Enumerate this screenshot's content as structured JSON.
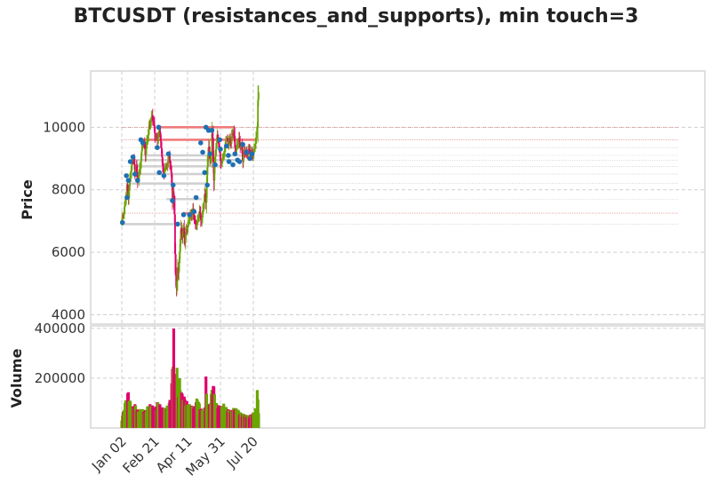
{
  "chart_data": {
    "type": "candlestick",
    "title": "BTCUSDT (resistances_and_supports), min touch=3",
    "price_panel": {
      "ylabel": "Price",
      "yticks": [
        4000,
        6000,
        8000,
        10000
      ],
      "ylim": [
        3700,
        11800
      ]
    },
    "volume_panel": {
      "ylabel": "Volume",
      "yticks": [
        "200000",
        "400000"
      ],
      "ylim": [
        0,
        410000
      ]
    },
    "x_ticks": [
      {
        "label": "Jan 02",
        "day": 0
      },
      {
        "label": "Feb 21",
        "day": 50
      },
      {
        "label": "Apr 11",
        "day": 100
      },
      {
        "label": "May 31",
        "day": 150
      },
      {
        "label": "Jul 20",
        "day": 200
      }
    ],
    "day_count": 209,
    "close_anchors": [
      [
        0,
        7000
      ],
      [
        3,
        7300
      ],
      [
        6,
        7750
      ],
      [
        8,
        8100
      ],
      [
        10,
        7800
      ],
      [
        12,
        8250
      ],
      [
        14,
        8600
      ],
      [
        16,
        8900
      ],
      [
        18,
        9050
      ],
      [
        20,
        8500
      ],
      [
        22,
        8750
      ],
      [
        24,
        8300
      ],
      [
        26,
        8450
      ],
      [
        28,
        8700
      ],
      [
        30,
        9200
      ],
      [
        32,
        9550
      ],
      [
        34,
        9400
      ],
      [
        36,
        9150
      ],
      [
        38,
        9500
      ],
      [
        40,
        9800
      ],
      [
        42,
        10000
      ],
      [
        44,
        10200
      ],
      [
        46,
        10400
      ],
      [
        48,
        10150
      ],
      [
        50,
        9800
      ],
      [
        52,
        9700
      ],
      [
        54,
        9600
      ],
      [
        56,
        9750
      ],
      [
        58,
        9900
      ],
      [
        60,
        9300
      ],
      [
        62,
        8800
      ],
      [
        64,
        8450
      ],
      [
        66,
        8800
      ],
      [
        68,
        8700
      ],
      [
        70,
        8900
      ],
      [
        72,
        9100
      ],
      [
        74,
        8800
      ],
      [
        76,
        8200
      ],
      [
        77,
        7700
      ],
      [
        78,
        7900
      ],
      [
        80,
        7300
      ],
      [
        81,
        6000
      ],
      [
        82,
        5200
      ],
      [
        83,
        4800
      ],
      [
        84,
        5100
      ],
      [
        85,
        5500
      ],
      [
        86,
        5300
      ],
      [
        88,
        6100
      ],
      [
        90,
        6700
      ],
      [
        92,
        6500
      ],
      [
        94,
        6800
      ],
      [
        96,
        6300
      ],
      [
        98,
        6700
      ],
      [
        100,
        6800
      ],
      [
        102,
        7050
      ],
      [
        104,
        7100
      ],
      [
        106,
        7200
      ],
      [
        108,
        7350
      ],
      [
        110,
        7100
      ],
      [
        112,
        6800
      ],
      [
        114,
        6950
      ],
      [
        116,
        7050
      ],
      [
        118,
        7300
      ],
      [
        120,
        7000
      ],
      [
        122,
        7150
      ],
      [
        124,
        7450
      ],
      [
        126,
        7800
      ],
      [
        128,
        7650
      ],
      [
        130,
        8700
      ],
      [
        132,
        9400
      ],
      [
        134,
        8900
      ],
      [
        136,
        9200
      ],
      [
        137,
        9800
      ],
      [
        138,
        9600
      ],
      [
        139,
        8900
      ],
      [
        140,
        8300
      ],
      [
        141,
        8700
      ],
      [
        143,
        9400
      ],
      [
        145,
        9700
      ],
      [
        147,
        9500
      ],
      [
        150,
        9000
      ],
      [
        152,
        8800
      ],
      [
        154,
        9100
      ],
      [
        156,
        9200
      ],
      [
        158,
        9650
      ],
      [
        160,
        9550
      ],
      [
        162,
        9500
      ],
      [
        164,
        9650
      ],
      [
        166,
        9500
      ],
      [
        168,
        9750
      ],
      [
        170,
        9900
      ],
      [
        171,
        9700
      ],
      [
        172,
        9400
      ],
      [
        174,
        9200
      ],
      [
        176,
        9500
      ],
      [
        178,
        9650
      ],
      [
        180,
        9400
      ],
      [
        182,
        9300
      ],
      [
        184,
        9000
      ],
      [
        186,
        9200
      ],
      [
        188,
        9150
      ],
      [
        190,
        9100
      ],
      [
        192,
        9300
      ],
      [
        194,
        9250
      ],
      [
        196,
        9100
      ],
      [
        198,
        9200
      ],
      [
        200,
        9150
      ],
      [
        202,
        9350
      ],
      [
        204,
        9600
      ],
      [
        206,
        10100
      ],
      [
        207,
        10900
      ],
      [
        208,
        11050
      ]
    ],
    "volume_anchors": [
      [
        0,
        35000
      ],
      [
        5,
        90000
      ],
      [
        10,
        130000
      ],
      [
        15,
        70000
      ],
      [
        20,
        85000
      ],
      [
        25,
        60000
      ],
      [
        30,
        70000
      ],
      [
        35,
        60000
      ],
      [
        40,
        80000
      ],
      [
        45,
        85000
      ],
      [
        50,
        70000
      ],
      [
        55,
        95000
      ],
      [
        60,
        75000
      ],
      [
        65,
        70000
      ],
      [
        70,
        80000
      ],
      [
        75,
        110000
      ],
      [
        78,
        260000
      ],
      [
        79,
        400000
      ],
      [
        80,
        190000
      ],
      [
        82,
        150000
      ],
      [
        84,
        210000
      ],
      [
        86,
        140000
      ],
      [
        88,
        175000
      ],
      [
        90,
        130000
      ],
      [
        95,
        110000
      ],
      [
        100,
        90000
      ],
      [
        105,
        80000
      ],
      [
        110,
        75000
      ],
      [
        115,
        110000
      ],
      [
        120,
        70000
      ],
      [
        125,
        60000
      ],
      [
        127,
        95000
      ],
      [
        128,
        190000
      ],
      [
        129,
        120000
      ],
      [
        131,
        70000
      ],
      [
        135,
        100000
      ],
      [
        137,
        140000
      ],
      [
        139,
        160000
      ],
      [
        141,
        130000
      ],
      [
        143,
        90000
      ],
      [
        145,
        85000
      ],
      [
        150,
        75000
      ],
      [
        155,
        85000
      ],
      [
        160,
        70000
      ],
      [
        165,
        60000
      ],
      [
        170,
        70000
      ],
      [
        175,
        70000
      ],
      [
        180,
        55000
      ],
      [
        185,
        50000
      ],
      [
        190,
        45000
      ],
      [
        195,
        45000
      ],
      [
        200,
        55000
      ],
      [
        203,
        70000
      ],
      [
        205,
        65000
      ],
      [
        206,
        150000
      ],
      [
        207,
        100000
      ],
      [
        208,
        55000
      ]
    ],
    "resistance_lines": [
      {
        "price": 10000,
        "start_day": 55,
        "end_day": 171,
        "style": "red"
      },
      {
        "price": 9600,
        "start_day": 29,
        "end_day": 206,
        "style": "red"
      },
      {
        "price": 9350,
        "start_day": 165,
        "end_day": 206,
        "style": "gray"
      },
      {
        "price": 9100,
        "start_day": 33,
        "end_day": 196,
        "style": "gray"
      },
      {
        "price": 8950,
        "start_day": 17,
        "end_day": 178,
        "style": "gray"
      },
      {
        "price": 8750,
        "start_day": 20,
        "end_day": 152,
        "style": "gray"
      },
      {
        "price": 8500,
        "start_day": 22,
        "end_day": 132,
        "style": "gray"
      },
      {
        "price": 8200,
        "start_day": 14,
        "end_day": 129,
        "style": "gray"
      },
      {
        "price": 7700,
        "start_day": 68,
        "end_day": 121,
        "style": "gray"
      },
      {
        "price": 7250,
        "start_day": 93,
        "end_day": 108,
        "style": "red"
      },
      {
        "price": 6900,
        "start_day": 0,
        "end_day": 85,
        "style": "gray"
      }
    ],
    "touch_markers": [
      [
        1,
        6950
      ],
      [
        7,
        8450
      ],
      [
        8,
        7750
      ],
      [
        10,
        8300
      ],
      [
        13,
        8900
      ],
      [
        17,
        9050
      ],
      [
        20,
        8500
      ],
      [
        24,
        8300
      ],
      [
        29,
        9600
      ],
      [
        32,
        9500
      ],
      [
        54,
        9350
      ],
      [
        56,
        10000
      ],
      [
        57,
        8550
      ],
      [
        64,
        8450
      ],
      [
        71,
        9150
      ],
      [
        77,
        7650
      ],
      [
        78,
        8150
      ],
      [
        85,
        6900
      ],
      [
        94,
        7200
      ],
      [
        103,
        7200
      ],
      [
        110,
        7300
      ],
      [
        113,
        7750
      ],
      [
        120,
        9500
      ],
      [
        123,
        9200
      ],
      [
        126,
        8550
      ],
      [
        128,
        10000
      ],
      [
        130,
        8150
      ],
      [
        132,
        9900
      ],
      [
        134,
        9150
      ],
      [
        137,
        9900
      ],
      [
        142,
        8800
      ],
      [
        149,
        9600
      ],
      [
        150,
        9300
      ],
      [
        159,
        9400
      ],
      [
        162,
        9100
      ],
      [
        163,
        8900
      ],
      [
        169,
        8800
      ],
      [
        172,
        9150
      ],
      [
        176,
        8950
      ],
      [
        179,
        8900
      ],
      [
        184,
        9450
      ],
      [
        190,
        9200
      ],
      [
        195,
        9000
      ],
      [
        198,
        9150
      ]
    ],
    "colors": {
      "up": "#6aa500",
      "down": "#e0006a",
      "marker": "#1f6fb2",
      "resistance_red": "#ef7b7b",
      "support_gray": "#d0d0d0",
      "ref_dotted": "#d9534f"
    }
  }
}
